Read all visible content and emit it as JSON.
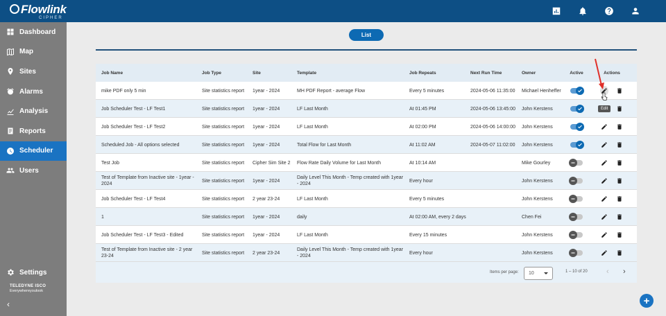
{
  "app": {
    "logo": "Flowlink",
    "logo_sub": "CIPHER",
    "brand_name": "TELEDYNE ISCO",
    "brand_tag": "Everywhereyoulook"
  },
  "header": {
    "icons": [
      "report-icon",
      "bell-icon",
      "help-icon",
      "user-icon"
    ]
  },
  "sidebar": {
    "items": [
      {
        "label": "Dashboard",
        "icon": "dashboard-icon",
        "active": false
      },
      {
        "label": "Map",
        "icon": "map-icon",
        "active": false
      },
      {
        "label": "Sites",
        "icon": "pin-icon",
        "active": false
      },
      {
        "label": "Alarms",
        "icon": "alarm-icon",
        "active": false
      },
      {
        "label": "Analysis",
        "icon": "analysis-icon",
        "active": false
      },
      {
        "label": "Reports",
        "icon": "reports-icon",
        "active": false
      },
      {
        "label": "Scheduler",
        "icon": "clock-icon",
        "active": true
      },
      {
        "label": "Users",
        "icon": "users-icon",
        "active": false
      }
    ],
    "settings": "Settings",
    "collapse": "‹"
  },
  "view_toggle": {
    "label": "List"
  },
  "table": {
    "columns": [
      "Job Name",
      "Job Type",
      "Site",
      "Template",
      "Job Repeats",
      "Next Run Time",
      "Owner",
      "Active",
      "Actions"
    ],
    "rows": [
      {
        "name": "mike PDF only 5 min",
        "type": "Site statistics report",
        "site": "1year - 2024",
        "template": "MH PDF Report - average Flow",
        "repeats": "Every 5 minutes",
        "next": "2024-05-06 11:35:00",
        "owner": "Michael Henheffer",
        "active": true
      },
      {
        "name": "Job Scheduler Test - LF Test1",
        "type": "Site statistics report",
        "site": "1year - 2024",
        "template": "LF Last Month",
        "repeats": "At 01:45 PM",
        "next": "2024-05-06 13:45:00",
        "owner": "John Kerstens",
        "active": true
      },
      {
        "name": "Job Scheduler Test - LF Test2",
        "type": "Site statistics report",
        "site": "1year - 2024",
        "template": "LF Last Month",
        "repeats": "At 02:00 PM",
        "next": "2024-05-06 14:00:00",
        "owner": "John Kerstens",
        "active": true
      },
      {
        "name": "Scheduled Job - All options selected",
        "type": "Site statistics report",
        "site": "1year - 2024",
        "template": "Total Flow for Last Month",
        "repeats": "At 11:02 AM",
        "next": "2024-05-07 11:02:00",
        "owner": "John Kerstens",
        "active": true
      },
      {
        "name": "Test Job",
        "type": "Site statistics report",
        "site": "Cipher Sim Site 2",
        "template": "Flow Rate Daily Volume for Last Month",
        "repeats": "At 10:14 AM",
        "next": "",
        "owner": "Mike Gourley",
        "active": false
      },
      {
        "name": "Test of Template from Inactive site - 1year - 2024",
        "type": "Site statistics report",
        "site": "1year - 2024",
        "template": "Daily Level This Month - Temp created with 1year - 2024",
        "repeats": "Every hour",
        "next": "",
        "owner": "John Kerstens",
        "active": false
      },
      {
        "name": "Job Scheduler Test - LF Test4",
        "type": "Site statistics report",
        "site": "2 year 23-24",
        "template": "LF Last Month",
        "repeats": "Every 5 minutes",
        "next": "",
        "owner": "John Kerstens",
        "active": false
      },
      {
        "name": "1",
        "type": "Site statistics report",
        "site": "1year - 2024",
        "template": "daily",
        "repeats": "At 02:00 AM, every 2 days",
        "next": "",
        "owner": "Chen Fei",
        "active": false
      },
      {
        "name": "Job Scheduler Test - LF Test3 - Edited",
        "type": "Site statistics report",
        "site": "1year - 2024",
        "template": "LF Last Month",
        "repeats": "Every 15 minutes",
        "next": "",
        "owner": "John Kerstens",
        "active": false
      },
      {
        "name": "Test of Template from Inactive site - 2 year 23-24",
        "type": "Site statistics report",
        "site": "2 year 23-24",
        "template": "Daily Level This Month - Temp created with 1year - 2024",
        "repeats": "Every hour",
        "next": "",
        "owner": "John Kerstens",
        "active": false
      }
    ]
  },
  "pagination": {
    "items_per_page_label": "Items per page:",
    "items_per_page": "10",
    "range": "1 – 10 of 20",
    "prev": "‹",
    "next": "›"
  },
  "tooltip": "Edit",
  "fab": "+",
  "colors": {
    "header": "#0d4f85",
    "sidebar": "#7d7d7d",
    "accent": "#1a73c2",
    "row_alt": "#e8f1f8"
  }
}
